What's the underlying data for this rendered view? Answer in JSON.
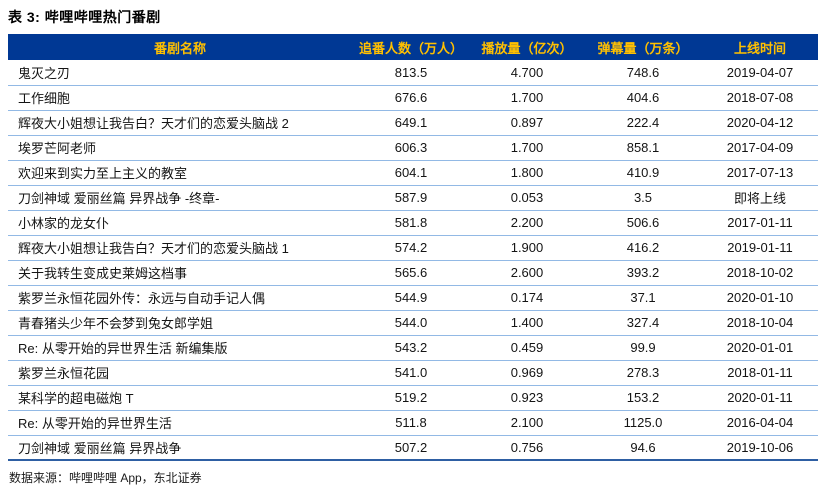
{
  "page": {
    "title": "表 3: 哔哩哔哩热门番剧",
    "source_note": "数据来源：哔哩哔哩 App，东北证券"
  },
  "chart_data": {
    "type": "table",
    "title": "哔哩哔哩热门番剧",
    "columns": [
      "番剧名称",
      "追番人数（万人）",
      "播放量（亿次）",
      "弹幕量（万条）",
      "上线时间"
    ],
    "rows": [
      [
        "鬼灭之刃",
        "813.5",
        "4.700",
        "748.6",
        "2019-04-07"
      ],
      [
        "工作细胞",
        "676.6",
        "1.700",
        "404.6",
        "2018-07-08"
      ],
      [
        "辉夜大小姐想让我告白？天才们的恋爱头脑战 2",
        "649.1",
        "0.897",
        "222.4",
        "2020-04-12"
      ],
      [
        "埃罗芒阿老师",
        "606.3",
        "1.700",
        "858.1",
        "2017-04-09"
      ],
      [
        "欢迎来到实力至上主义的教室",
        "604.1",
        "1.800",
        "410.9",
        "2017-07-13"
      ],
      [
        "刀剑神域 爱丽丝篇 异界战争 -终章-",
        "587.9",
        "0.053",
        "3.5",
        "即将上线"
      ],
      [
        "小林家的龙女仆",
        "581.8",
        "2.200",
        "506.6",
        "2017-01-11"
      ],
      [
        "辉夜大小姐想让我告白？天才们的恋爱头脑战 1",
        "574.2",
        "1.900",
        "416.2",
        "2019-01-11"
      ],
      [
        "关于我转生变成史莱姆这档事",
        "565.6",
        "2.600",
        "393.2",
        "2018-10-02"
      ],
      [
        "紫罗兰永恒花园外传：永远与自动手记人偶",
        "544.9",
        "0.174",
        "37.1",
        "2020-01-10"
      ],
      [
        "青春猪头少年不会梦到兔女郎学姐",
        "544.0",
        "1.400",
        "327.4",
        "2018-10-04"
      ],
      [
        "Re: 从零开始的异世界生活 新编集版",
        "543.2",
        "0.459",
        "99.9",
        "2020-01-01"
      ],
      [
        "紫罗兰永恒花园",
        "541.0",
        "0.969",
        "278.3",
        "2018-01-11"
      ],
      [
        "某科学的超电磁炮 T",
        "519.2",
        "0.923",
        "153.2",
        "2020-01-11"
      ],
      [
        "Re: 从零开始的异世界生活",
        "511.8",
        "2.100",
        "1125.0",
        "2016-04-04"
      ],
      [
        "刀剑神域 爱丽丝篇 异界战争",
        "507.2",
        "0.756",
        "94.6",
        "2019-10-06"
      ]
    ]
  },
  "colors": {
    "header_bg": "#003894",
    "header_text": "#FFC000",
    "row_divider": "#92B9E5",
    "table_bottom_border": "#2E5FA3",
    "body_text": "#141414"
  }
}
